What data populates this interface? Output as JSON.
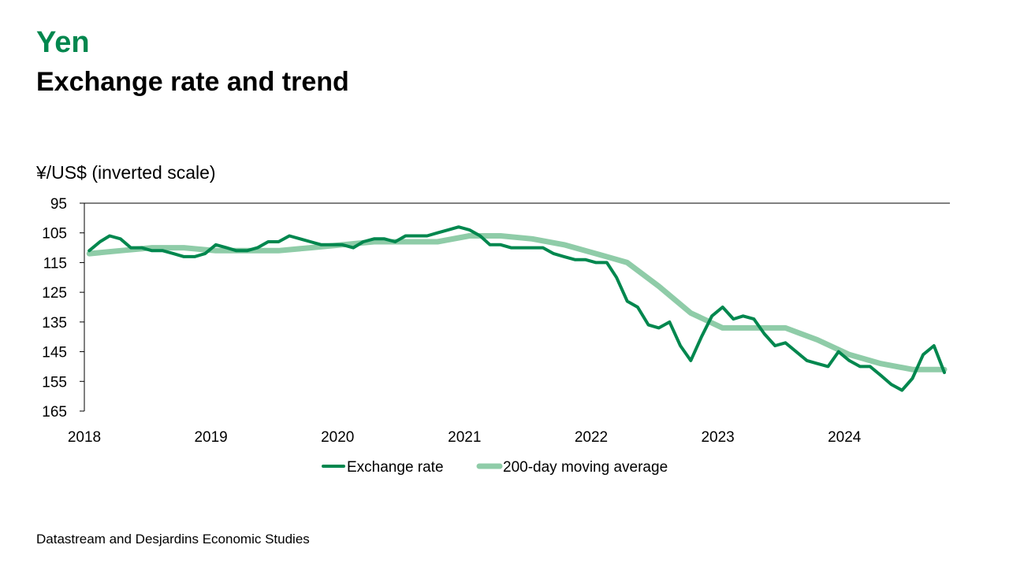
{
  "header": {
    "title": "Yen",
    "subtitle": "Exchange rate and trend",
    "unit_label": "¥/US$ (inverted scale)"
  },
  "footer": {
    "source": "Datastream and Desjardins Economic Studies"
  },
  "colors": {
    "title": "#00874e",
    "exchange_rate": "#00874e",
    "moving_average": "#8fcca8",
    "axis": "#000000"
  },
  "chart_data": {
    "type": "line",
    "title": "Exchange rate and trend",
    "ylabel": "¥/US$ (inverted scale)",
    "y_inverted": true,
    "ylim": [
      95,
      165
    ],
    "y_ticks": [
      95,
      105,
      115,
      125,
      135,
      145,
      155,
      165
    ],
    "x_ticks": [
      "2018",
      "2019",
      "2020",
      "2021",
      "2022",
      "2023",
      "2024"
    ],
    "xlim": [
      "2018-01",
      "2024-10"
    ],
    "grid": false,
    "legend_position": "bottom",
    "series": [
      {
        "name": "Exchange rate",
        "x": [
          "2018-01",
          "2018-02",
          "2018-03",
          "2018-04",
          "2018-05",
          "2018-06",
          "2018-07",
          "2018-08",
          "2018-09",
          "2018-10",
          "2018-11",
          "2018-12",
          "2019-01",
          "2019-02",
          "2019-03",
          "2019-04",
          "2019-05",
          "2019-06",
          "2019-07",
          "2019-08",
          "2019-09",
          "2019-10",
          "2019-11",
          "2019-12",
          "2020-01",
          "2020-02",
          "2020-03",
          "2020-04",
          "2020-05",
          "2020-06",
          "2020-07",
          "2020-08",
          "2020-09",
          "2020-10",
          "2020-11",
          "2020-12",
          "2021-01",
          "2021-02",
          "2021-03",
          "2021-04",
          "2021-05",
          "2021-06",
          "2021-07",
          "2021-08",
          "2021-09",
          "2021-10",
          "2021-11",
          "2021-12",
          "2022-01",
          "2022-02",
          "2022-03",
          "2022-04",
          "2022-05",
          "2022-06",
          "2022-07",
          "2022-08",
          "2022-09",
          "2022-10",
          "2022-11",
          "2022-12",
          "2023-01",
          "2023-02",
          "2023-03",
          "2023-04",
          "2023-05",
          "2023-06",
          "2023-07",
          "2023-08",
          "2023-09",
          "2023-10",
          "2023-11",
          "2023-12",
          "2024-01",
          "2024-02",
          "2024-03",
          "2024-04",
          "2024-05",
          "2024-06",
          "2024-07",
          "2024-08",
          "2024-09",
          "2024-10"
        ],
        "values": [
          111,
          108,
          106,
          107,
          110,
          110,
          111,
          111,
          112,
          113,
          113,
          112,
          109,
          110,
          111,
          111,
          110,
          108,
          108,
          106,
          107,
          108,
          109,
          109,
          109,
          110,
          108,
          107,
          107,
          108,
          106,
          106,
          106,
          105,
          104,
          103,
          104,
          106,
          109,
          109,
          110,
          110,
          110,
          110,
          112,
          113,
          114,
          114,
          115,
          115,
          120,
          128,
          130,
          136,
          137,
          135,
          143,
          148,
          140,
          133,
          130,
          134,
          133,
          134,
          139,
          143,
          142,
          145,
          148,
          149,
          150,
          145,
          148,
          150,
          150,
          153,
          156,
          158,
          154,
          146,
          143,
          152
        ],
        "color": "#00874e"
      },
      {
        "name": "200-day moving average",
        "x": [
          "2018-01",
          "2018-04",
          "2018-07",
          "2018-10",
          "2019-01",
          "2019-04",
          "2019-07",
          "2019-10",
          "2020-01",
          "2020-04",
          "2020-07",
          "2020-10",
          "2021-01",
          "2021-04",
          "2021-07",
          "2021-10",
          "2022-01",
          "2022-04",
          "2022-07",
          "2022-10",
          "2023-01",
          "2023-04",
          "2023-07",
          "2023-10",
          "2024-01",
          "2024-04",
          "2024-07",
          "2024-10"
        ],
        "values": [
          112,
          111,
          110,
          110,
          111,
          111,
          111,
          110,
          109,
          108,
          108,
          108,
          106,
          106,
          107,
          109,
          112,
          115,
          123,
          132,
          137,
          137,
          137,
          141,
          146,
          149,
          151,
          151
        ],
        "color": "#8fcca8"
      }
    ]
  }
}
